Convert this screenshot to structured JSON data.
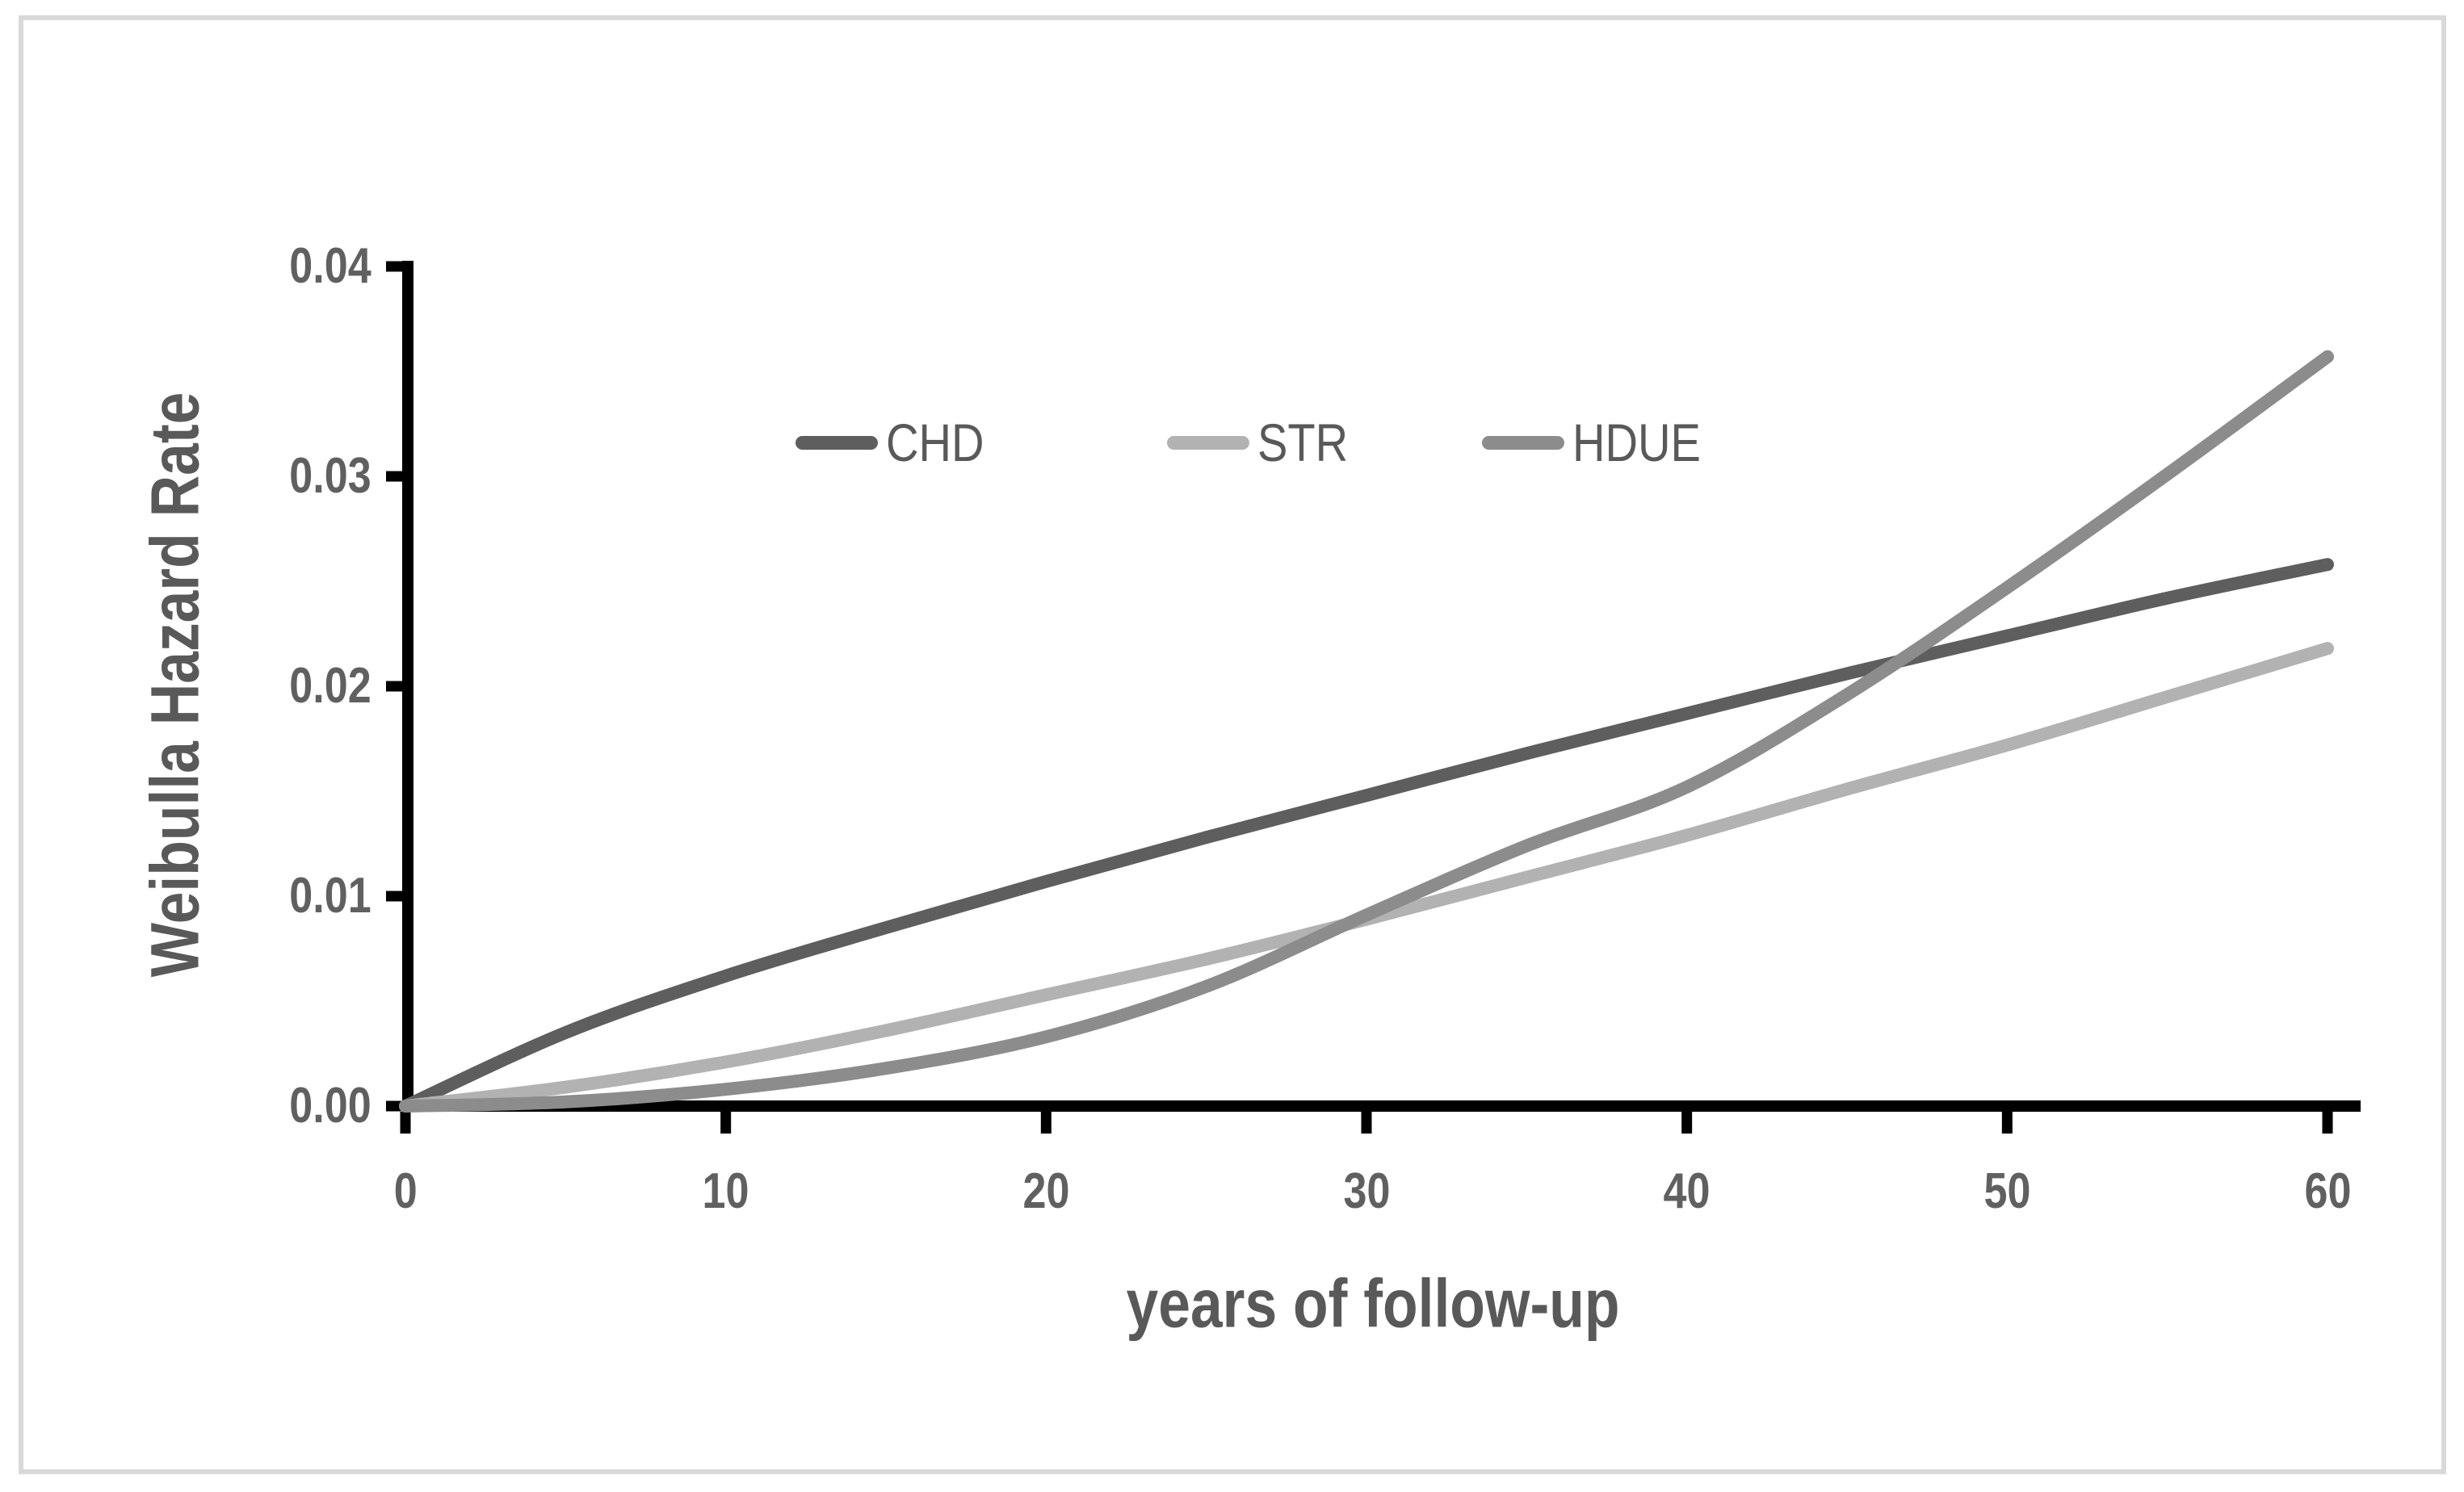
{
  "chart_data": {
    "type": "line",
    "title": "",
    "xlabel": "years of follow-up",
    "ylabel": "Weibulla Hazard Rate",
    "xlim": [
      0,
      60
    ],
    "ylim": [
      0,
      0.04
    ],
    "grid": false,
    "legend_position": "top-center-inside",
    "x_ticks": [
      0,
      10,
      20,
      30,
      40,
      50,
      60
    ],
    "x_tick_labels": [
      "0",
      "10",
      "20",
      "30",
      "40",
      "50",
      "60"
    ],
    "y_ticks": [
      0,
      0.01,
      0.02,
      0.03,
      0.04
    ],
    "y_tick_labels": [
      "0.00",
      "0.01",
      "0.02",
      "0.03",
      "0.04"
    ],
    "x": [
      0,
      5,
      10,
      15,
      20,
      25,
      30,
      35,
      40,
      45,
      50,
      55,
      60
    ],
    "series": [
      {
        "name": "CHD",
        "color": "#5e5e5e",
        "values": [
          0,
          0.0035,
          0.0062,
          0.0085,
          0.0107,
          0.0128,
          0.0148,
          0.0168,
          0.0187,
          0.0206,
          0.0224,
          0.0242,
          0.0258
        ]
      },
      {
        "name": "STR",
        "color": "#b2b2b2",
        "values": [
          0,
          0.0009,
          0.0021,
          0.0036,
          0.0053,
          0.007,
          0.0089,
          0.0109,
          0.0129,
          0.0151,
          0.0172,
          0.0195,
          0.0218
        ]
      },
      {
        "name": "HDUE",
        "color": "#8c8c8c",
        "values": [
          0,
          0.0002,
          0.0008,
          0.0018,
          0.0033,
          0.0057,
          0.0091,
          0.0124,
          0.0152,
          0.0196,
          0.0247,
          0.0301,
          0.0357
        ]
      }
    ]
  }
}
